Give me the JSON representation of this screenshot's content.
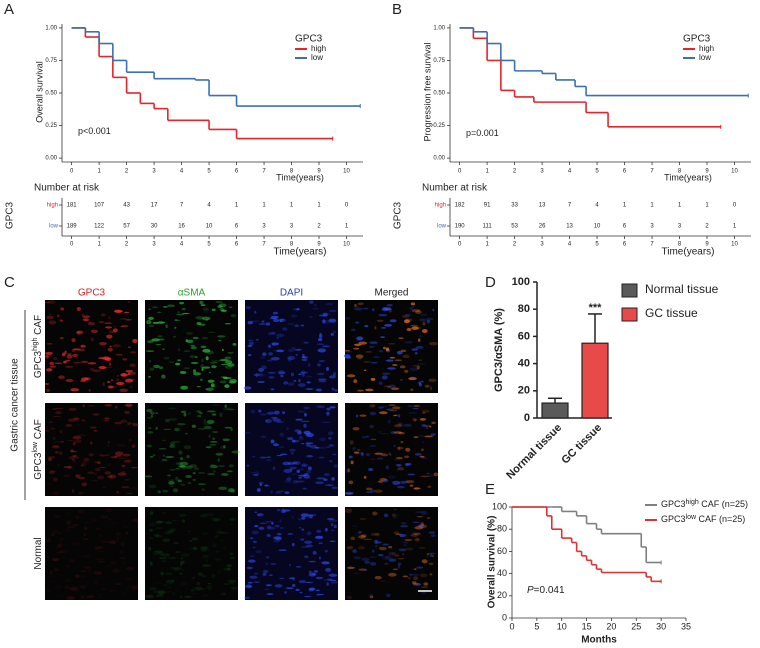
{
  "chart_data": [
    {
      "panel": "A",
      "type": "step",
      "y_label": "Overall survival",
      "x_label": "Time(years)",
      "legend_title": "GPC3",
      "annotation": "p<0.001",
      "xlim": [
        -0.35,
        10.6
      ],
      "ylim": [
        -0.03,
        1.03
      ],
      "xticks": [
        0,
        1,
        2,
        3,
        4,
        5,
        6,
        7,
        8,
        9,
        10
      ],
      "yticks": [
        {
          "value": 0,
          "label": "0.00"
        },
        {
          "value": 0.25,
          "label": "0.25"
        },
        {
          "value": 0.5,
          "label": "0.50"
        },
        {
          "value": 0.75,
          "label": "0.75"
        },
        {
          "value": 1,
          "label": "1.00"
        }
      ],
      "series": [
        {
          "name": "high",
          "color": "#e8232a",
          "x": [
            0,
            0.5,
            1,
            1.5,
            2,
            2.5,
            3,
            3.5,
            5,
            6,
            9.5
          ],
          "values": [
            1,
            0.93,
            0.78,
            0.62,
            0.5,
            0.42,
            0.38,
            0.29,
            0.22,
            0.15,
            0.15
          ]
        },
        {
          "name": "low",
          "color": "#3b6fb6",
          "x": [
            0,
            0.5,
            1,
            1.5,
            2,
            3,
            4.5,
            5,
            6,
            10.5
          ],
          "values": [
            1,
            0.97,
            0.88,
            0.75,
            0.66,
            0.61,
            0.6,
            0.48,
            0.4,
            0.4
          ]
        }
      ],
      "risk_table": {
        "title": "Number at risk",
        "y_label": "GPC3",
        "x_label": "Time(years)",
        "rows": [
          [
            181,
            107,
            43,
            17,
            7,
            4,
            1,
            1,
            1,
            1,
            0
          ],
          [
            189,
            122,
            57,
            30,
            16,
            10,
            6,
            3,
            3,
            2,
            1
          ]
        ]
      }
    },
    {
      "panel": "B",
      "type": "step",
      "y_label": "Progression free survival",
      "x_label": "Time(years)",
      "legend_title": "GPC3",
      "annotation": "p=0.001",
      "xlim": [
        -0.35,
        10.6
      ],
      "ylim": [
        -0.03,
        1.03
      ],
      "xticks": [
        0,
        1,
        2,
        3,
        4,
        5,
        6,
        7,
        8,
        9,
        10
      ],
      "yticks": [
        {
          "value": 0,
          "label": "0.00"
        },
        {
          "value": 0.25,
          "label": "0.25"
        },
        {
          "value": 0.5,
          "label": "0.50"
        },
        {
          "value": 0.75,
          "label": "0.75"
        },
        {
          "value": 1,
          "label": "1.00"
        }
      ],
      "series": [
        {
          "name": "high",
          "color": "#e8232a",
          "x": [
            0,
            0.5,
            1,
            1.5,
            2,
            2.7,
            4.6,
            5.4,
            9.5
          ],
          "values": [
            1,
            0.92,
            0.75,
            0.52,
            0.47,
            0.43,
            0.35,
            0.24,
            0.24
          ]
        },
        {
          "name": "low",
          "color": "#3b6fb6",
          "x": [
            0,
            0.5,
            1,
            1.5,
            2,
            3,
            3.5,
            4.2,
            4.6,
            10.5
          ],
          "values": [
            1,
            0.97,
            0.88,
            0.75,
            0.67,
            0.65,
            0.6,
            0.55,
            0.48,
            0.48
          ]
        }
      ],
      "risk_table": {
        "title": "Number at risk",
        "y_label": "GPC3",
        "x_label": "Time(years)",
        "rows": [
          [
            182,
            91,
            33,
            13,
            7,
            4,
            1,
            1,
            1,
            1,
            0
          ],
          [
            190,
            111,
            53,
            26,
            13,
            10,
            6,
            3,
            3,
            2,
            1
          ]
        ]
      }
    },
    {
      "panel": "D",
      "type": "bar",
      "y_label": "GPC3/αSMA (%)",
      "categories": [
        "Normal tissue",
        "GC tissue"
      ],
      "values": [
        11,
        55
      ],
      "errors": [
        3.5,
        21.5
      ],
      "colors": [
        "#5a5a5a",
        "#e84a4a"
      ],
      "annotations": [
        null,
        "***"
      ],
      "ylim": [
        0,
        100
      ],
      "yticks": [
        0,
        20,
        40,
        60,
        80,
        100
      ]
    },
    {
      "panel": "E",
      "type": "step",
      "y_label": "Overall survival (%)",
      "x_label": "Months",
      "annotation_italic": "P",
      "annotation": "=0.041",
      "xlim": [
        0,
        35
      ],
      "ylim": [
        0,
        100
      ],
      "xticks": [
        0,
        5,
        10,
        15,
        20,
        25,
        30,
        35
      ],
      "yticks": [
        0,
        20,
        40,
        60,
        80,
        100
      ],
      "series": [
        {
          "name": "GPC3",
          "name_sup": "high",
          "name_rest": " CAF (n=25)",
          "color": "#7f7f7f",
          "x": [
            0,
            8,
            10,
            13,
            15,
            17,
            18,
            26,
            27,
            30
          ],
          "values": [
            100,
            100,
            96,
            92,
            85,
            80,
            76,
            64,
            50,
            50
          ]
        },
        {
          "name": "GPC3",
          "name_sup": "low",
          "name_rest": " CAF (n=25)",
          "color": "#e03030",
          "x": [
            0,
            7,
            8,
            10,
            12,
            13,
            14,
            15,
            16,
            17,
            18,
            27,
            28,
            30
          ],
          "values": [
            100,
            92,
            80,
            72,
            68,
            60,
            56,
            52,
            48,
            44,
            41,
            37,
            33,
            33
          ]
        }
      ]
    }
  ],
  "panel_c": {
    "panel": "C",
    "columns": [
      "GPC3",
      "αSMA",
      "DAPI",
      "Merged"
    ],
    "group_label": "Gastric cancer tissue",
    "rows": [
      {
        "base": "GPC3",
        "sup": "high",
        "rest": " CAF"
      },
      {
        "base": "GPC3",
        "sup": "low",
        "rest": " CAF"
      },
      {
        "base": "Normal"
      }
    ]
  }
}
